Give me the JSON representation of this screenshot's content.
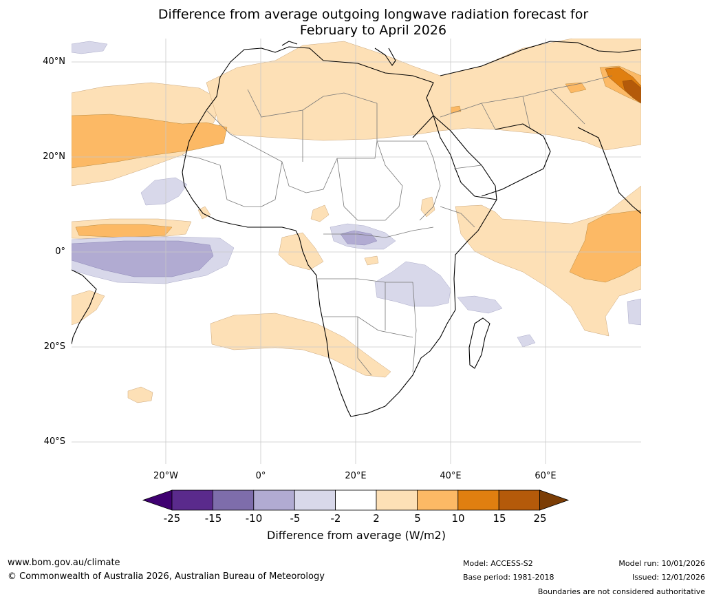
{
  "title": {
    "line1": "Difference from average outgoing longwave radiation forecast for",
    "line2": "February to April 2026"
  },
  "map": {
    "lat_labels": [
      "40°N",
      "20°N",
      "0°",
      "20°S",
      "40°S"
    ],
    "lon_labels": [
      "20°W",
      "0°",
      "20°E",
      "40°E",
      "60°E"
    ]
  },
  "colorbar": {
    "ticks": [
      "-25",
      "-15",
      "-10",
      "-5",
      "-2",
      "2",
      "5",
      "10",
      "15",
      "25"
    ],
    "colors": [
      "#3f0071",
      "#5a2a8c",
      "#7e6dab",
      "#b1abd2",
      "#d8d8ea",
      "#ffffff",
      "#fde0b6",
      "#fcb965",
      "#e07f10",
      "#b45a0a",
      "#7b3d05"
    ],
    "label": "Difference from average (W/m2)"
  },
  "footer": {
    "url": "www.bom.gov.au/climate",
    "copyright": "© Commonwealth of Australia 2026, Australian Bureau of Meteorology",
    "model": "Model: ACCESS-S2",
    "base_period": "Base period: 1981-2018",
    "model_run": "Model run: 10/01/2026",
    "issued": "Issued: 12/01/2026",
    "disclaimer": "Boundaries are not considered authoritative"
  }
}
